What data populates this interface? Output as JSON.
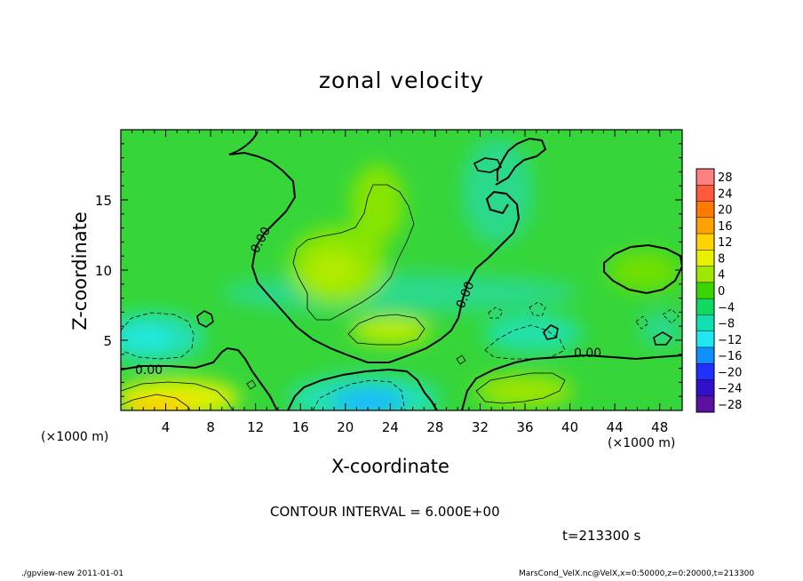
{
  "chart_data": {
    "type": "heatmap",
    "title": "zonal velocity",
    "xlabel": "X-coordinate",
    "ylabel": "Z-coordinate",
    "x_unit": "(×1000 m)",
    "xlim": [
      0,
      50
    ],
    "ylim": [
      0,
      20
    ],
    "x_ticks": [
      4,
      8,
      12,
      16,
      20,
      24,
      28,
      32,
      36,
      40,
      44,
      48
    ],
    "y_ticks": [
      5,
      10,
      15
    ],
    "colorbar": {
      "levels": [
        28,
        24,
        20,
        16,
        12,
        8,
        4,
        0,
        -4,
        -8,
        -12,
        -16,
        -20,
        -24,
        -28
      ],
      "colors": [
        "#ff8080",
        "#ff5a3c",
        "#ff7a00",
        "#ffa200",
        "#ffd400",
        "#e6f000",
        "#9fe600",
        "#3ad400",
        "#10d860",
        "#10e0b0",
        "#20e8f0",
        "#1090ff",
        "#2030ff",
        "#3010c8",
        "#5a10a0"
      ]
    },
    "contour_label": "0.00",
    "contour_interval": "CONTOUR INTERVAL = 6.000E+00",
    "time_label": "t=213300 s",
    "footer_left": "./gpview-new  2011-01-01",
    "footer_right": "MarsCond_VelX.nc@VelX,x=0:50000,z=0:20000,t=213300",
    "field_features": [
      {
        "kind": "warm",
        "x": 3,
        "z": 0.4,
        "value": 13
      },
      {
        "kind": "warm",
        "x": 6,
        "z": 1.0,
        "value": 9
      },
      {
        "kind": "cold",
        "x": 21,
        "z": 1.0,
        "value": -13
      },
      {
        "kind": "cold",
        "x": 2,
        "z": 5.5,
        "value": -9
      },
      {
        "kind": "warm",
        "x": 19,
        "z": 10.5,
        "value": 6
      },
      {
        "kind": "warm",
        "x": 23,
        "z": 14,
        "value": 4
      },
      {
        "kind": "warm",
        "x": 25,
        "z": 5.7,
        "value": 7
      },
      {
        "kind": "warm",
        "x": 36,
        "z": 1.6,
        "value": 6
      },
      {
        "kind": "cold",
        "x": 37,
        "z": 5.0,
        "value": -7
      },
      {
        "kind": "cold",
        "x": 48,
        "z": 6.5,
        "value": -5
      },
      {
        "kind": "warm",
        "x": 46,
        "z": 10.5,
        "value": 3
      }
    ]
  }
}
